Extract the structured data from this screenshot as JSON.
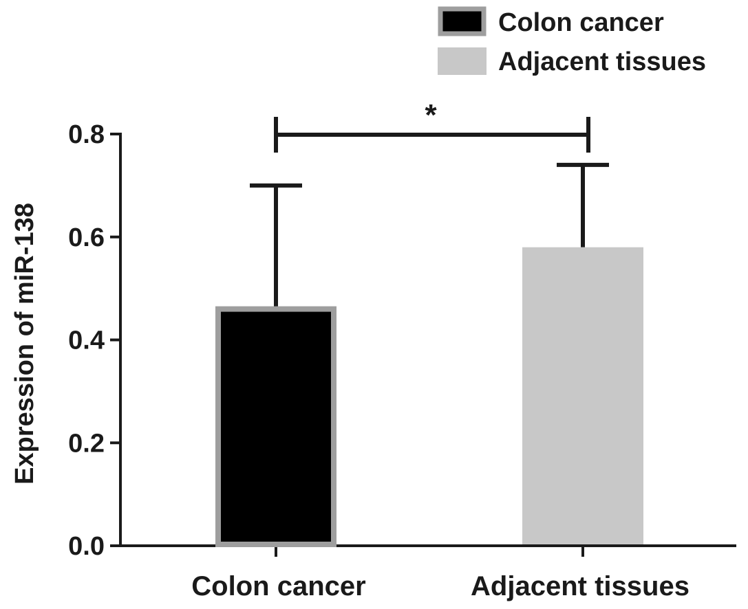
{
  "chart_data": {
    "type": "bar",
    "categories": [
      "Colon cancer",
      "Adjacent tissues"
    ],
    "values": [
      0.46,
      0.58
    ],
    "error_upper": [
      0.7,
      0.74
    ],
    "bar_colors": [
      "#000000",
      "#c8c8c8"
    ],
    "bar_outline_colors": [
      "#9e9e9e",
      "#c8c8c8"
    ],
    "xlabel": "",
    "ylabel": "Expression of miR-138",
    "ylim": [
      0,
      0.8
    ],
    "yticks": [
      "0.0",
      "0.2",
      "0.4",
      "0.6",
      "0.8"
    ],
    "grid": false,
    "legend": {
      "placement": "top-right",
      "entries": [
        "Colon cancer",
        "Adjacent tissues"
      ]
    },
    "significance": {
      "label": "*",
      "between": [
        "Colon cancer",
        "Adjacent tissues"
      ]
    }
  }
}
